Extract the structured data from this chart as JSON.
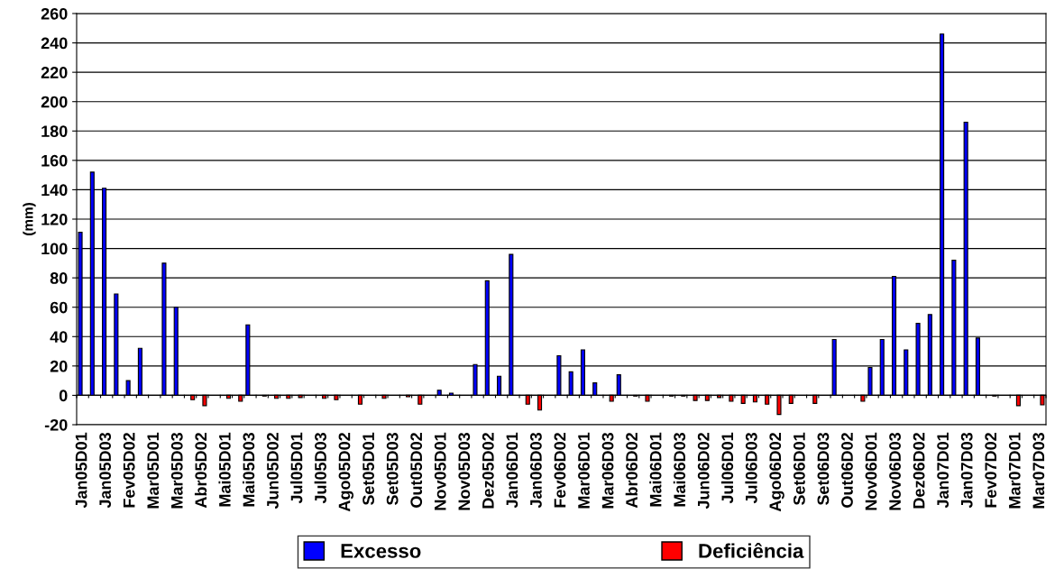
{
  "chart_data": {
    "type": "bar",
    "ylabel": "(mm)",
    "categories": [
      "Jan05D01",
      null,
      "Jan05D03",
      null,
      "Fev05D02",
      null,
      "Mar05D01",
      null,
      "Mar05D03",
      null,
      "Abr05D02",
      null,
      "Mai05D01",
      null,
      "Mai05D03",
      null,
      "Jun05D02",
      null,
      "Jul05D01",
      null,
      "Jul05D03",
      null,
      "Ago05D02",
      null,
      "Set05D01",
      null,
      "Set05D03",
      null,
      "Out05D02",
      null,
      "Nov05D01",
      null,
      "Nov05D03",
      null,
      "Dez05D02",
      null,
      "Jan06D01",
      null,
      "Jan06D03",
      null,
      "Fev06D02",
      null,
      "Mar06D01",
      null,
      "Mar06D03",
      null,
      "Abr06D02",
      null,
      "Mai06D01",
      null,
      "Mai06D03",
      null,
      "Jun06D02",
      null,
      "Jul06D01",
      null,
      "Jul06D03",
      null,
      "Ago06D02",
      null,
      "Set06D01",
      null,
      "Set06D03",
      null,
      "Out06D02",
      null,
      "Nov06D01",
      null,
      "Nov06D03",
      null,
      "Dez06D02",
      null,
      "Jan07D01",
      null,
      "Jan07D03",
      null,
      "Fev07D02",
      null,
      "Mar07D01",
      null,
      "Mar07D03"
    ],
    "series": [
      {
        "name": "Excesso",
        "color": "#0000ff",
        "values": [
          111,
          152,
          141,
          69,
          10,
          32,
          null,
          90,
          60,
          null,
          null,
          null,
          null,
          null,
          48,
          null,
          null,
          null,
          null,
          null,
          null,
          null,
          null,
          null,
          null,
          null,
          null,
          null,
          null,
          null,
          3.5,
          1.5,
          null,
          21,
          78,
          13,
          96,
          null,
          null,
          null,
          27,
          16,
          31,
          8.5,
          null,
          14,
          null,
          null,
          null,
          null,
          null,
          null,
          null,
          null,
          null,
          null,
          null,
          null,
          null,
          null,
          null,
          null,
          null,
          38,
          null,
          null,
          19,
          38,
          81,
          31,
          49,
          55,
          246,
          92,
          186,
          39,
          null,
          null,
          null,
          null,
          null
        ]
      },
      {
        "name": "Deficiência",
        "color": "#ff0000",
        "values": [
          null,
          null,
          null,
          null,
          null,
          null,
          null,
          null,
          null,
          -3,
          -7,
          null,
          -2,
          -4,
          null,
          -0.5,
          -2,
          -2,
          -1.5,
          null,
          -2,
          -3,
          null,
          -6,
          null,
          -2,
          null,
          -1,
          -6,
          null,
          null,
          null,
          null,
          null,
          null,
          null,
          null,
          -6,
          -10,
          null,
          null,
          null,
          null,
          null,
          -4,
          null,
          -0.5,
          -4,
          null,
          -0.5,
          -0.5,
          -3.5,
          -3.5,
          -1.5,
          -4,
          -5.5,
          -4.5,
          -6,
          -13,
          -5.5,
          null,
          -5.5,
          null,
          null,
          null,
          -4,
          null,
          null,
          null,
          null,
          null,
          null,
          null,
          null,
          null,
          null,
          -0.5,
          null,
          -7,
          null,
          -6.5
        ]
      }
    ],
    "ylim": [
      -20,
      260
    ],
    "yticks": [
      -20,
      0,
      20,
      40,
      60,
      80,
      100,
      120,
      140,
      160,
      180,
      200,
      220,
      240,
      260
    ],
    "grid": "y",
    "legend": "bottom"
  }
}
